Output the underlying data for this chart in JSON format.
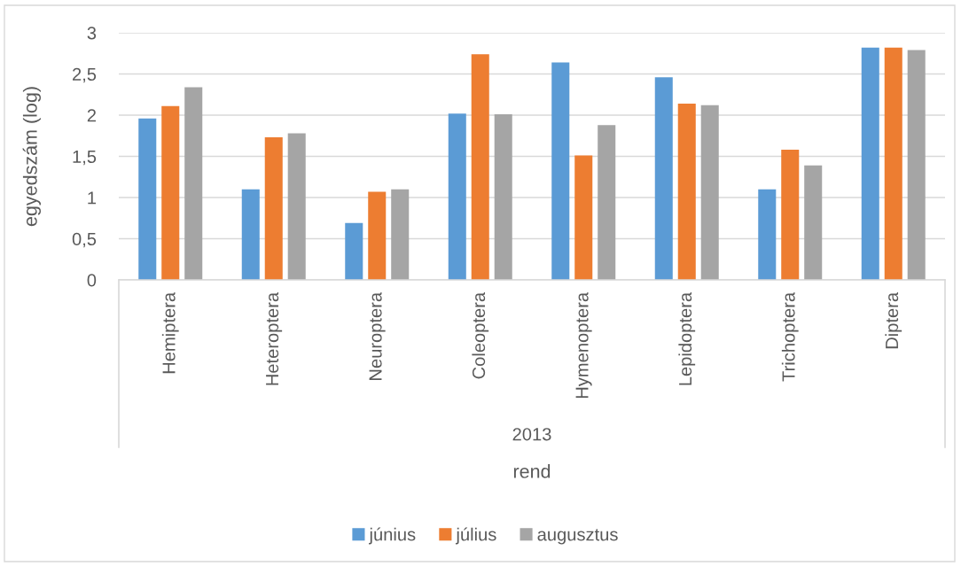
{
  "chart_data": {
    "type": "bar",
    "categories": [
      "Hemiptera",
      "Heteroptera",
      "Neuroptera",
      "Coleoptera",
      "Hymenoptera",
      "Lepidoptera",
      "Trichoptera",
      "Diptera"
    ],
    "series": [
      {
        "name": "június",
        "color": "#5b9bd5",
        "values": [
          1.96,
          1.1,
          0.69,
          2.02,
          2.64,
          2.46,
          1.1,
          2.82
        ]
      },
      {
        "name": "július",
        "color": "#ed7d31",
        "values": [
          2.11,
          1.73,
          1.07,
          2.74,
          1.51,
          2.14,
          1.58,
          2.82
        ]
      },
      {
        "name": "augusztus",
        "color": "#a5a5a5",
        "values": [
          2.34,
          1.78,
          1.1,
          2.01,
          1.88,
          2.12,
          1.39,
          2.79
        ]
      }
    ],
    "ylabel": "egyedszám (log)",
    "xlabel": "rend",
    "annotations": [
      "2013"
    ],
    "ylim": [
      0,
      3
    ],
    "yticks": [
      0,
      {
        "value": 0.5,
        "label": "0,5"
      },
      1,
      {
        "value": 1.5,
        "label": "1,5"
      },
      2,
      {
        "value": 2.5,
        "label": "2,5"
      },
      3
    ],
    "grid": "y",
    "legend": "bottom"
  }
}
